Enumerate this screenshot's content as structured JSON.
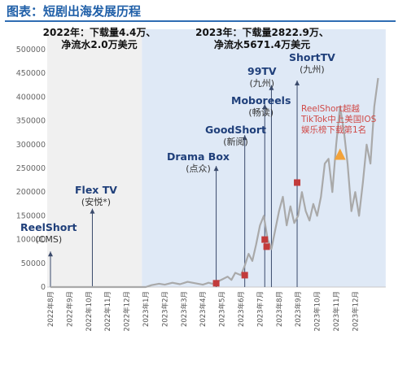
{
  "header": {
    "title": "图表：短剧出海发展历程"
  },
  "stats": {
    "y2022_line1": "2022年：下载量4.4万、",
    "y2022_line2": "净流水2.0万美元",
    "y2023_line1": "2023年：下载量2822.9万、",
    "y2023_line2": "净流水5671.4万美元"
  },
  "annotations": {
    "reelshort": {
      "name": "ReelShort",
      "sub": "(CMS)"
    },
    "flextv": {
      "name": "Flex TV",
      "sub": "(安悦*)"
    },
    "dramabox": {
      "name": "Drama Box",
      "sub": "(点众)"
    },
    "goodshort": {
      "name": "GoodShort",
      "sub": "(新阅)"
    },
    "moboreels": {
      "name": "Moboreels",
      "sub": "(畅读)"
    },
    "tv99": {
      "name": "99TV",
      "sub": "(九州)"
    },
    "shorttv": {
      "name": "ShortTV",
      "sub": "(九州)"
    },
    "reelshort_rank_1": "ReelShort超越",
    "reelshort_rank_2": "TikTok中上美国IOS",
    "reelshort_rank_3": "娱乐榜下载第1名"
  },
  "colors": {
    "line": "#a9a9a9",
    "shade_2023": "#dfe9f6",
    "shade_2022": "#f0f0f0",
    "marker": "#c23b3b",
    "triangle": "#f2a23a"
  },
  "chart_data": {
    "type": "line",
    "x_ticks": [
      "2022年8月",
      "2022年9月",
      "2022年10月",
      "2022年11月",
      "2022年12月",
      "2023年1月",
      "2023年2月",
      "2023年3月",
      "2023年4月",
      "2023年5月",
      "2023年6月",
      "2023年7月",
      "2023年8月",
      "2023年9月",
      "2023年10月",
      "2023年11月",
      "2023年12月"
    ],
    "y_ticks": [
      "0",
      "50000",
      "100000",
      "150000",
      "200000",
      "250000",
      "300000",
      "350000",
      "400000",
      "450000",
      "500000"
    ],
    "ylim": [
      0,
      500000
    ],
    "points": [
      [
        0,
        0
      ],
      [
        4,
        0
      ],
      [
        5,
        0
      ],
      [
        5.3,
        4000
      ],
      [
        5.7,
        7000
      ],
      [
        6,
        5000
      ],
      [
        6.4,
        9000
      ],
      [
        6.8,
        6000
      ],
      [
        7.2,
        11000
      ],
      [
        7.6,
        8000
      ],
      [
        8,
        5000
      ],
      [
        8.3,
        9000
      ],
      [
        8.5,
        7000
      ],
      [
        8.8,
        12000
      ],
      [
        9,
        16000
      ],
      [
        9.3,
        22000
      ],
      [
        9.5,
        15000
      ],
      [
        9.7,
        30000
      ],
      [
        10,
        25000
      ],
      [
        10.2,
        45000
      ],
      [
        10.4,
        70000
      ],
      [
        10.6,
        55000
      ],
      [
        10.8,
        90000
      ],
      [
        11,
        130000
      ],
      [
        11.2,
        150000
      ],
      [
        11.4,
        100000
      ],
      [
        11.6,
        80000
      ],
      [
        11.8,
        120000
      ],
      [
        12,
        160000
      ],
      [
        12.2,
        190000
      ],
      [
        12.4,
        130000
      ],
      [
        12.6,
        170000
      ],
      [
        12.8,
        135000
      ],
      [
        13,
        150000
      ],
      [
        13.2,
        200000
      ],
      [
        13.4,
        160000
      ],
      [
        13.6,
        140000
      ],
      [
        13.8,
        175000
      ],
      [
        14,
        150000
      ],
      [
        14.2,
        190000
      ],
      [
        14.4,
        260000
      ],
      [
        14.6,
        270000
      ],
      [
        14.8,
        200000
      ],
      [
        15,
        300000
      ],
      [
        15.2,
        380000
      ],
      [
        15.4,
        330000
      ],
      [
        15.6,
        260000
      ],
      [
        15.8,
        160000
      ],
      [
        16,
        200000
      ],
      [
        16.2,
        150000
      ],
      [
        16.4,
        220000
      ],
      [
        16.6,
        300000
      ],
      [
        16.8,
        260000
      ],
      [
        17,
        380000
      ],
      [
        17.2,
        440000
      ]
    ],
    "markers": [
      {
        "x": 8.7,
        "y": 8000,
        "shape": "square"
      },
      {
        "x": 10.2,
        "y": 25000,
        "shape": "square"
      },
      {
        "x": 11.25,
        "y": 100000,
        "shape": "square"
      },
      {
        "x": 11.35,
        "y": 85000,
        "shape": "square"
      },
      {
        "x": 12.95,
        "y": 220000,
        "shape": "square"
      },
      {
        "x": 15.2,
        "y": 280000,
        "shape": "triangle"
      }
    ],
    "annotation_arrows": [
      {
        "x": 0.0,
        "y_top": 75000
      },
      {
        "x": 2.2,
        "y_top": 165000
      },
      {
        "x": 8.7,
        "y_top": 255000
      },
      {
        "x": 10.2,
        "y_top": 320000
      },
      {
        "x": 11.25,
        "y_top": 385000
      },
      {
        "x": 11.6,
        "y_top": 425000
      },
      {
        "x": 12.95,
        "y_top": 435000
      }
    ],
    "shaded_2022": [
      0,
      4.8
    ],
    "shaded_2023": [
      4.8,
      17.6
    ]
  }
}
